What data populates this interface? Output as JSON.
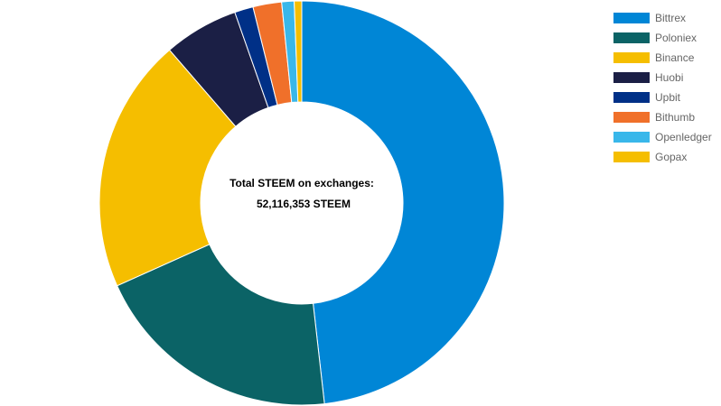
{
  "chart_data": {
    "type": "pie",
    "variant": "donut",
    "categories": [
      "Bittrex",
      "Poloniex",
      "Binance",
      "Huobi",
      "Upbit",
      "Bithumb",
      "Openledger",
      "Gopax"
    ],
    "values": [
      48.5,
      20.2,
      20.5,
      6.0,
      1.5,
      2.3,
      1.0,
      0.6
    ],
    "colors": [
      "#0086d6",
      "#0b6366",
      "#f5be00",
      "#1b1f45",
      "#003087",
      "#f0702a",
      "#39b7ea",
      "#f5be00"
    ],
    "legend_position": "top-right"
  },
  "center": {
    "title": "Total STEEM on exchanges:",
    "value": "52,116,353 STEEM"
  }
}
